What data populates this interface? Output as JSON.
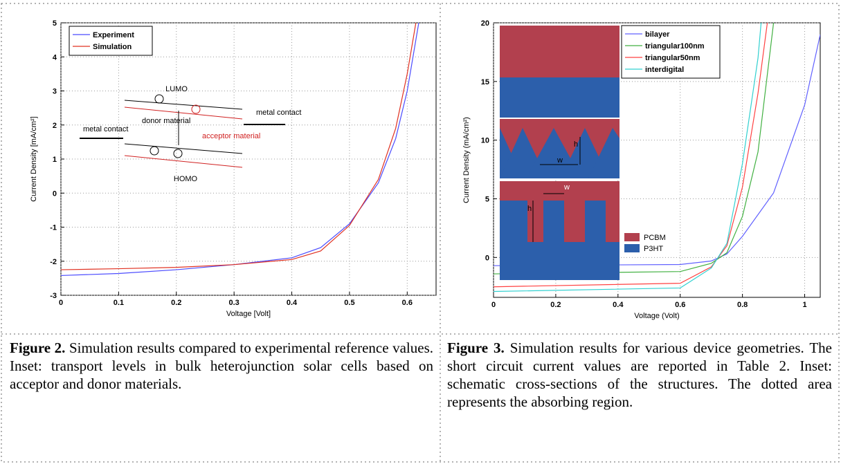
{
  "chart_data": [
    {
      "type": "line",
      "ylabel": "Current Density [mA/cm²]",
      "xlabel": "Voltage [Volt]",
      "xlim": [
        0,
        0.65
      ],
      "xticks": [
        0,
        0.1,
        0.2,
        0.3,
        0.4,
        0.5,
        0.6
      ],
      "ylim": [
        -3,
        5
      ],
      "yticks": [
        -3,
        -2,
        -1,
        0,
        1,
        2,
        3,
        4,
        5
      ],
      "grid": true,
      "legend": "upper left",
      "annotations": [
        "LUMO",
        "HOMO",
        "metal contact",
        "donor material",
        "acceptor material",
        "metal contact"
      ],
      "series": [
        {
          "name": "Experiment",
          "color": "#4a4aff",
          "x": [
            0,
            0.1,
            0.2,
            0.3,
            0.4,
            0.45,
            0.5,
            0.55,
            0.58,
            0.6,
            0.62
          ],
          "values": [
            -2.42,
            -2.36,
            -2.25,
            -2.1,
            -1.9,
            -1.6,
            -0.9,
            0.3,
            1.6,
            3.0,
            5.0
          ]
        },
        {
          "name": "Simulation",
          "color": "#e03020",
          "x": [
            0,
            0.1,
            0.2,
            0.3,
            0.4,
            0.45,
            0.5,
            0.55,
            0.58,
            0.6,
            0.615
          ],
          "values": [
            -2.25,
            -2.22,
            -2.18,
            -2.1,
            -1.95,
            -1.7,
            -0.95,
            0.4,
            1.9,
            3.5,
            5.0
          ]
        }
      ]
    },
    {
      "type": "line",
      "ylabel": "Current Density (mA/cm²)",
      "xlabel": "Voltage (Volt)",
      "xlim": [
        0,
        1.05
      ],
      "xticks": [
        0,
        0.2,
        0.4,
        0.6,
        0.8,
        1
      ],
      "ylim": [
        -3.4,
        20
      ],
      "yticks": [
        0,
        5,
        10,
        15,
        20
      ],
      "grid": true,
      "legend": "upper right",
      "annotations": [
        "h",
        "w",
        "h",
        "w",
        "PCBM",
        "P3HT"
      ],
      "series": [
        {
          "name": "bilayer",
          "color": "#6060ff",
          "x": [
            0,
            0.6,
            0.7,
            0.75,
            0.8,
            0.9,
            1.0,
            1.05
          ],
          "values": [
            -0.7,
            -0.6,
            -0.3,
            0.3,
            1.8,
            5.5,
            13,
            19
          ]
        },
        {
          "name": "triangular100nm",
          "color": "#40b040",
          "x": [
            0,
            0.6,
            0.7,
            0.75,
            0.8,
            0.85,
            0.9
          ],
          "values": [
            -1.4,
            -1.2,
            -0.5,
            0.4,
            3.5,
            9,
            20
          ]
        },
        {
          "name": "triangular50nm",
          "color": "#ff4040",
          "x": [
            0,
            0.6,
            0.7,
            0.75,
            0.8,
            0.85,
            0.88
          ],
          "values": [
            -2.5,
            -2.2,
            -0.8,
            1,
            6,
            14,
            20
          ]
        },
        {
          "name": "interdigital",
          "color": "#30d0d0",
          "x": [
            0,
            0.6,
            0.7,
            0.75,
            0.8,
            0.85,
            0.86
          ],
          "values": [
            -2.9,
            -2.6,
            -0.9,
            1.2,
            8,
            17,
            20
          ]
        }
      ]
    }
  ],
  "captions": [
    {
      "label": "Figure 2.",
      "text": "Simulation results compared to experimental reference values. Inset: transport levels in bulk heterojunction solar cells based on acceptor and donor materials."
    },
    {
      "label": "Figure 3.",
      "text": "Simulation results for various device geometries. The short circuit current values are reported in Table 2. Inset: schematic cross-sections of the structures. The dotted area represents the absorbing region."
    }
  ]
}
